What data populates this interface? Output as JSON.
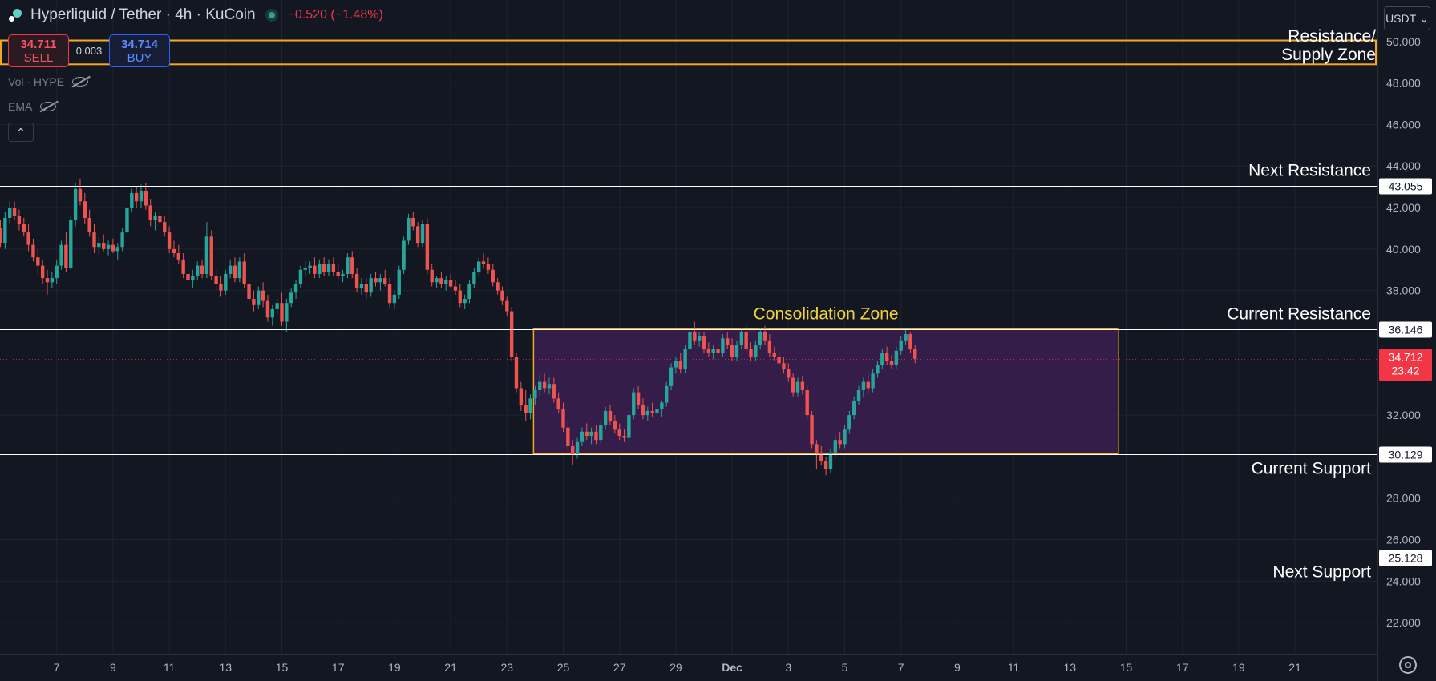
{
  "header": {
    "symbol_title": "Hyperliquid / Tether · 4h · KuCoin",
    "change": "−0.520 (−1.48%)"
  },
  "trade": {
    "sell_price": "34.711",
    "sell_label": "SELL",
    "spread": "0.003",
    "buy_price": "34.714",
    "buy_label": "BUY"
  },
  "indicators": {
    "vol_label": "Vol · HYPE",
    "ema_label": "EMA",
    "collapse_glyph": "⌃"
  },
  "currency_button": {
    "label": "USDT",
    "glyph": "⌄"
  },
  "colors": {
    "background": "#131722",
    "up": "#26a69a",
    "down": "#ef5350",
    "level_line": "#ffffff",
    "zone_border": "#f5a623",
    "consolidation_fill": "#3b1f4f",
    "consolidation_label": "#f2d33b",
    "last_price_bg": "#f23645"
  },
  "chart_data": {
    "type": "candlestick",
    "y_axis": {
      "range": [
        20.5,
        52.0
      ],
      "ticks": [
        "22.000",
        "24.000",
        "26.000",
        "28.000",
        "32.000",
        "38.000",
        "40.000",
        "42.000",
        "44.000",
        "46.000",
        "48.000",
        "50.000"
      ]
    },
    "x_axis": {
      "labels": [
        "7",
        "9",
        "11",
        "13",
        "15",
        "17",
        "19",
        "21",
        "23",
        "25",
        "27",
        "29",
        "Dec",
        "3",
        "5",
        "7",
        "9",
        "11",
        "13",
        "15",
        "17",
        "19",
        "21"
      ],
      "first_label_bar": 12,
      "bars_per_label": 12,
      "total_bars": 276
    },
    "grid": true,
    "candles": [
      [
        41.0,
        41.4,
        40.1,
        40.3
      ],
      [
        40.3,
        41.8,
        40.0,
        41.5
      ],
      [
        41.5,
        42.3,
        41.2,
        42.0
      ],
      [
        42.0,
        42.3,
        41.4,
        41.6
      ],
      [
        41.6,
        41.9,
        40.9,
        41.2
      ],
      [
        41.2,
        41.5,
        40.6,
        40.8
      ],
      [
        40.8,
        41.2,
        39.9,
        40.2
      ],
      [
        40.2,
        40.5,
        39.4,
        39.6
      ],
      [
        39.6,
        40.0,
        38.8,
        39.2
      ],
      [
        39.2,
        39.5,
        38.3,
        38.6
      ],
      [
        38.6,
        39.0,
        37.8,
        38.4
      ],
      [
        38.4,
        38.9,
        38.1,
        38.6
      ],
      [
        38.6,
        39.5,
        38.3,
        39.2
      ],
      [
        39.2,
        40.4,
        39.0,
        40.2
      ],
      [
        40.2,
        40.8,
        38.9,
        39.1
      ],
      [
        39.1,
        41.6,
        39.0,
        41.4
      ],
      [
        41.4,
        43.2,
        41.1,
        42.9
      ],
      [
        42.9,
        43.4,
        42.1,
        42.3
      ],
      [
        42.3,
        42.7,
        41.2,
        41.5
      ],
      [
        41.5,
        41.9,
        40.6,
        40.8
      ],
      [
        40.8,
        41.2,
        39.8,
        40.1
      ],
      [
        40.1,
        40.6,
        39.7,
        40.3
      ],
      [
        40.3,
        40.7,
        39.9,
        40.0
      ],
      [
        40.0,
        40.4,
        39.7,
        40.2
      ],
      [
        40.2,
        40.5,
        39.8,
        39.9
      ],
      [
        39.9,
        40.3,
        39.5,
        40.1
      ],
      [
        40.1,
        41.0,
        39.9,
        40.8
      ],
      [
        40.8,
        42.2,
        40.6,
        42.0
      ],
      [
        42.0,
        42.9,
        41.8,
        42.7
      ],
      [
        42.7,
        43.0,
        42.0,
        42.3
      ],
      [
        42.3,
        43.1,
        42.0,
        42.8
      ],
      [
        42.8,
        43.2,
        41.9,
        42.1
      ],
      [
        42.1,
        42.4,
        41.1,
        41.4
      ],
      [
        41.4,
        41.8,
        40.9,
        41.6
      ],
      [
        41.6,
        41.9,
        41.2,
        41.3
      ],
      [
        41.3,
        41.6,
        40.6,
        40.8
      ],
      [
        40.8,
        41.1,
        39.8,
        40.0
      ],
      [
        40.0,
        40.4,
        39.6,
        39.8
      ],
      [
        39.8,
        40.2,
        39.3,
        39.5
      ],
      [
        39.5,
        39.8,
        38.6,
        38.8
      ],
      [
        38.8,
        39.2,
        38.2,
        38.5
      ],
      [
        38.5,
        39.0,
        38.1,
        38.7
      ],
      [
        38.7,
        39.4,
        38.5,
        39.2
      ],
      [
        39.2,
        39.5,
        38.6,
        38.8
      ],
      [
        38.8,
        41.3,
        38.6,
        40.6
      ],
      [
        40.6,
        40.9,
        38.5,
        38.7
      ],
      [
        38.7,
        39.1,
        38.0,
        38.3
      ],
      [
        38.3,
        38.7,
        37.7,
        38.0
      ],
      [
        38.0,
        39.0,
        37.8,
        38.8
      ],
      [
        38.8,
        39.5,
        38.6,
        39.2
      ],
      [
        39.2,
        39.6,
        38.4,
        38.6
      ],
      [
        38.6,
        39.6,
        38.4,
        39.4
      ],
      [
        39.4,
        39.8,
        38.1,
        38.3
      ],
      [
        38.3,
        38.7,
        37.3,
        37.6
      ],
      [
        37.6,
        38.0,
        37.0,
        37.3
      ],
      [
        37.3,
        38.2,
        37.1,
        38.0
      ],
      [
        38.0,
        38.4,
        37.2,
        37.5
      ],
      [
        37.5,
        37.8,
        36.5,
        36.7
      ],
      [
        36.7,
        37.3,
        36.3,
        37.1
      ],
      [
        37.1,
        37.6,
        36.8,
        37.4
      ],
      [
        37.4,
        37.9,
        36.3,
        36.5
      ],
      [
        36.5,
        37.6,
        36.0,
        37.4
      ],
      [
        37.4,
        38.1,
        37.2,
        37.9
      ],
      [
        37.9,
        38.5,
        37.6,
        38.3
      ],
      [
        38.3,
        39.2,
        38.1,
        39.0
      ],
      [
        39.0,
        39.4,
        38.7,
        39.1
      ],
      [
        39.1,
        39.4,
        38.8,
        39.2
      ],
      [
        39.2,
        39.6,
        38.6,
        38.8
      ],
      [
        38.8,
        39.5,
        38.6,
        39.3
      ],
      [
        39.3,
        39.6,
        38.7,
        38.9
      ],
      [
        38.9,
        39.5,
        38.7,
        39.3
      ],
      [
        39.3,
        39.6,
        38.7,
        38.9
      ],
      [
        38.9,
        39.3,
        38.5,
        38.7
      ],
      [
        38.7,
        39.0,
        38.4,
        38.8
      ],
      [
        38.8,
        39.8,
        38.6,
        39.6
      ],
      [
        39.6,
        39.9,
        38.6,
        38.8
      ],
      [
        38.8,
        39.1,
        37.9,
        38.1
      ],
      [
        38.1,
        38.6,
        37.8,
        38.3
      ],
      [
        38.3,
        38.6,
        37.6,
        37.9
      ],
      [
        37.9,
        38.8,
        37.7,
        38.6
      ],
      [
        38.6,
        38.9,
        38.2,
        38.4
      ],
      [
        38.4,
        38.8,
        38.0,
        38.6
      ],
      [
        38.6,
        39.0,
        38.2,
        38.3
      ],
      [
        38.3,
        38.6,
        37.2,
        37.4
      ],
      [
        37.4,
        38.0,
        37.1,
        37.8
      ],
      [
        37.8,
        39.2,
        37.6,
        39.0
      ],
      [
        39.0,
        40.6,
        38.8,
        40.4
      ],
      [
        40.4,
        41.7,
        40.2,
        41.5
      ],
      [
        41.5,
        41.8,
        40.9,
        41.1
      ],
      [
        41.1,
        41.3,
        40.1,
        40.3
      ],
      [
        40.3,
        41.4,
        40.1,
        41.2
      ],
      [
        41.2,
        41.5,
        38.8,
        39.0
      ],
      [
        39.0,
        39.3,
        38.2,
        38.4
      ],
      [
        38.4,
        38.7,
        38.1,
        38.6
      ],
      [
        38.6,
        38.9,
        38.1,
        38.3
      ],
      [
        38.3,
        38.7,
        38.0,
        38.5
      ],
      [
        38.5,
        38.8,
        38.1,
        38.2
      ],
      [
        38.2,
        38.5,
        37.8,
        38.0
      ],
      [
        38.0,
        38.3,
        37.2,
        37.4
      ],
      [
        37.4,
        37.8,
        37.1,
        37.6
      ],
      [
        37.6,
        38.5,
        37.4,
        38.3
      ],
      [
        38.3,
        39.1,
        38.1,
        38.9
      ],
      [
        38.9,
        39.6,
        38.7,
        39.4
      ],
      [
        39.4,
        39.8,
        39.1,
        39.3
      ],
      [
        39.3,
        39.6,
        38.8,
        39.0
      ],
      [
        39.0,
        39.3,
        38.2,
        38.4
      ],
      [
        38.4,
        38.6,
        37.8,
        38.0
      ],
      [
        38.0,
        38.2,
        37.3,
        37.5
      ],
      [
        37.5,
        37.7,
        36.8,
        37.0
      ],
      [
        37.0,
        37.2,
        34.6,
        34.8
      ],
      [
        34.8,
        35.0,
        33.1,
        33.3
      ],
      [
        33.3,
        33.6,
        32.2,
        32.5
      ],
      [
        32.5,
        33.2,
        31.7,
        32.1
      ],
      [
        32.1,
        33.0,
        31.8,
        32.8
      ],
      [
        32.8,
        33.4,
        32.5,
        33.2
      ],
      [
        33.2,
        34.0,
        32.9,
        33.6
      ],
      [
        33.6,
        34.0,
        33.1,
        33.3
      ],
      [
        33.3,
        33.8,
        33.0,
        33.5
      ],
      [
        33.5,
        33.8,
        32.6,
        32.8
      ],
      [
        32.8,
        33.1,
        32.1,
        32.3
      ],
      [
        32.3,
        32.6,
        31.2,
        31.4
      ],
      [
        31.4,
        31.7,
        30.3,
        30.5
      ],
      [
        30.5,
        30.8,
        29.6,
        30.1
      ],
      [
        30.1,
        30.9,
        29.9,
        30.7
      ],
      [
        30.7,
        31.4,
        30.5,
        31.2
      ],
      [
        31.2,
        31.6,
        30.8,
        31.0
      ],
      [
        31.0,
        31.4,
        30.6,
        31.2
      ],
      [
        31.2,
        31.5,
        30.6,
        30.8
      ],
      [
        30.8,
        31.7,
        30.6,
        31.5
      ],
      [
        31.5,
        32.4,
        31.3,
        32.2
      ],
      [
        32.2,
        32.5,
        31.5,
        31.7
      ],
      [
        31.7,
        32.0,
        31.1,
        31.3
      ],
      [
        31.3,
        31.6,
        30.8,
        31.0
      ],
      [
        31.0,
        31.3,
        30.7,
        30.9
      ],
      [
        30.9,
        32.2,
        30.7,
        32.0
      ],
      [
        32.0,
        33.3,
        31.8,
        33.1
      ],
      [
        33.1,
        33.4,
        32.3,
        32.5
      ],
      [
        32.5,
        32.8,
        31.8,
        32.0
      ],
      [
        32.0,
        32.4,
        31.7,
        32.2
      ],
      [
        32.2,
        32.6,
        31.9,
        32.1
      ],
      [
        32.1,
        32.4,
        31.8,
        32.3
      ],
      [
        32.3,
        32.7,
        31.9,
        32.6
      ],
      [
        32.6,
        33.6,
        32.4,
        33.4
      ],
      [
        33.4,
        34.5,
        33.2,
        34.3
      ],
      [
        34.3,
        34.8,
        34.0,
        34.6
      ],
      [
        34.6,
        35.0,
        34.0,
        34.2
      ],
      [
        34.2,
        35.4,
        34.0,
        35.2
      ],
      [
        35.2,
        36.2,
        35.0,
        36.0
      ],
      [
        36.0,
        36.5,
        35.4,
        35.6
      ],
      [
        35.6,
        36.0,
        35.3,
        35.8
      ],
      [
        35.8,
        36.0,
        35.0,
        35.2
      ],
      [
        35.2,
        35.5,
        34.8,
        35.0
      ],
      [
        35.0,
        35.4,
        34.7,
        35.2
      ],
      [
        35.2,
        35.5,
        34.8,
        35.0
      ],
      [
        35.0,
        35.9,
        34.8,
        35.7
      ],
      [
        35.7,
        36.0,
        35.2,
        35.4
      ],
      [
        35.4,
        35.7,
        34.6,
        34.8
      ],
      [
        34.8,
        35.6,
        34.6,
        35.4
      ],
      [
        35.4,
        36.2,
        35.2,
        36.0
      ],
      [
        36.0,
        36.4,
        35.0,
        35.2
      ],
      [
        35.2,
        35.5,
        34.6,
        34.8
      ],
      [
        34.8,
        35.6,
        34.6,
        35.4
      ],
      [
        35.4,
        36.2,
        35.2,
        36.0
      ],
      [
        36.0,
        36.3,
        35.4,
        35.6
      ],
      [
        35.6,
        35.9,
        34.8,
        35.0
      ],
      [
        35.0,
        35.3,
        34.6,
        34.8
      ],
      [
        34.8,
        35.1,
        34.3,
        34.5
      ],
      [
        34.5,
        34.8,
        34.0,
        34.2
      ],
      [
        34.2,
        34.5,
        33.6,
        33.8
      ],
      [
        33.8,
        34.0,
        32.9,
        33.1
      ],
      [
        33.1,
        33.8,
        32.9,
        33.6
      ],
      [
        33.6,
        33.9,
        33.0,
        33.2
      ],
      [
        33.2,
        33.4,
        31.8,
        32.0
      ],
      [
        32.0,
        32.2,
        30.4,
        30.6
      ],
      [
        30.6,
        30.8,
        29.4,
        30.2
      ],
      [
        30.2,
        30.5,
        29.6,
        29.8
      ],
      [
        29.8,
        30.0,
        29.1,
        29.4
      ],
      [
        29.4,
        30.4,
        29.2,
        30.2
      ],
      [
        30.2,
        31.0,
        30.0,
        30.8
      ],
      [
        30.8,
        31.2,
        30.4,
        30.6
      ],
      [
        30.6,
        31.5,
        30.4,
        31.3
      ],
      [
        31.3,
        32.2,
        31.1,
        32.0
      ],
      [
        32.0,
        32.9,
        31.8,
        32.7
      ],
      [
        32.7,
        33.4,
        32.5,
        33.2
      ],
      [
        33.2,
        33.8,
        32.9,
        33.6
      ],
      [
        33.6,
        34.0,
        33.0,
        33.3
      ],
      [
        33.3,
        34.2,
        33.1,
        34.0
      ],
      [
        34.0,
        34.6,
        33.8,
        34.4
      ],
      [
        34.4,
        35.2,
        34.2,
        35.0
      ],
      [
        35.0,
        35.3,
        34.4,
        34.6
      ],
      [
        34.6,
        34.9,
        34.2,
        34.4
      ],
      [
        34.4,
        35.3,
        34.2,
        35.1
      ],
      [
        35.1,
        35.8,
        34.9,
        35.6
      ],
      [
        35.6,
        36.1,
        35.4,
        35.9
      ],
      [
        35.9,
        36.0,
        35.0,
        35.2
      ],
      [
        35.2,
        35.4,
        34.5,
        34.712
      ]
    ],
    "levels": [
      {
        "value": 43.055,
        "label": "Next Resistance",
        "tag": "43.055"
      },
      {
        "value": 36.146,
        "label": "Current Resistance",
        "tag": "36.146"
      },
      {
        "value": 30.129,
        "label": "Current Support",
        "tag": "30.129"
      },
      {
        "value": 25.128,
        "label": "Next Support",
        "tag": "25.128"
      }
    ],
    "supply_zone": {
      "top": 50.05,
      "bottom": 48.9,
      "label_line1": "Resistance/",
      "label_line2": "Supply Zone"
    },
    "consolidation_zone": {
      "top": 36.146,
      "bottom": 30.129,
      "start_bar": 114,
      "end_bar": 238,
      "label": "Consolidation Zone"
    },
    "last_price": {
      "value": 34.712,
      "label": "34.712",
      "countdown": "23:42"
    }
  }
}
